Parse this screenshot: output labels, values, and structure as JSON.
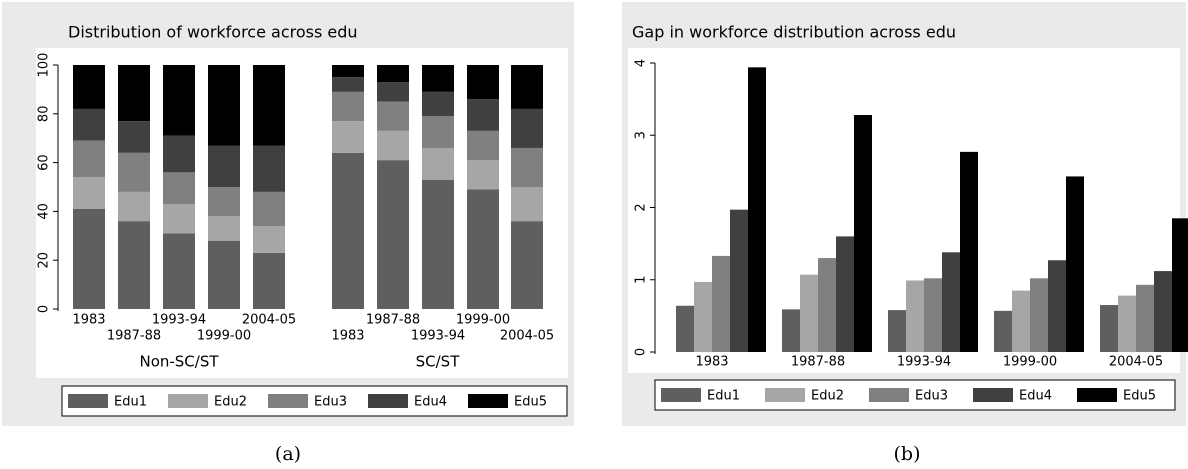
{
  "chart_data": [
    {
      "type": "bar",
      "stacked": true,
      "title": "Distribution of workforce across edu",
      "caption": "(a)",
      "group_labels": [
        "Non-SC/ST",
        "SC/ST"
      ],
      "categories": [
        "1983",
        "1987-88",
        "1993-94",
        "1999-00",
        "2004-05",
        "1983",
        "1987-88",
        "1993-94",
        "1999-00",
        "2004-05"
      ],
      "series": [
        {
          "name": "Edu1",
          "color": "#5f5f5f",
          "values": [
            41,
            36,
            31,
            28,
            23,
            64,
            61,
            53,
            49,
            36
          ]
        },
        {
          "name": "Edu2",
          "color": "#a6a6a6",
          "values": [
            13,
            12,
            12,
            10,
            11,
            13,
            12,
            13,
            12,
            14
          ]
        },
        {
          "name": "Edu3",
          "color": "#808080",
          "values": [
            15,
            16,
            13,
            12,
            14,
            12,
            12,
            13,
            12,
            16
          ]
        },
        {
          "name": "Edu4",
          "color": "#404040",
          "values": [
            13,
            13,
            15,
            17,
            19,
            6,
            8,
            10,
            13,
            16
          ]
        },
        {
          "name": "Edu5",
          "color": "#000000",
          "values": [
            18,
            23,
            29,
            33,
            33,
            5,
            7,
            11,
            14,
            18
          ]
        }
      ],
      "ylim": [
        0,
        100
      ],
      "yticks": [
        0,
        20,
        40,
        60,
        80,
        100
      ],
      "grid": false
    },
    {
      "type": "bar",
      "stacked": false,
      "title": "Gap in workforce distribution across edu",
      "caption": "(b)",
      "categories": [
        "1983",
        "1987-88",
        "1993-94",
        "1999-00",
        "2004-05"
      ],
      "series": [
        {
          "name": "Edu1",
          "color": "#5f5f5f",
          "values": [
            0.64,
            0.59,
            0.58,
            0.57,
            0.65
          ]
        },
        {
          "name": "Edu2",
          "color": "#a6a6a6",
          "values": [
            0.97,
            1.07,
            0.99,
            0.85,
            0.78
          ]
        },
        {
          "name": "Edu3",
          "color": "#808080",
          "values": [
            1.33,
            1.3,
            1.02,
            1.02,
            0.93
          ]
        },
        {
          "name": "Edu4",
          "color": "#404040",
          "values": [
            1.97,
            1.6,
            1.38,
            1.27,
            1.12
          ]
        },
        {
          "name": "Edu5",
          "color": "#000000",
          "values": [
            3.94,
            3.28,
            2.77,
            2.43,
            1.85
          ]
        }
      ],
      "ylim": [
        0,
        4
      ],
      "yticks": [
        0,
        1,
        2,
        3,
        4
      ],
      "grid": false
    }
  ]
}
